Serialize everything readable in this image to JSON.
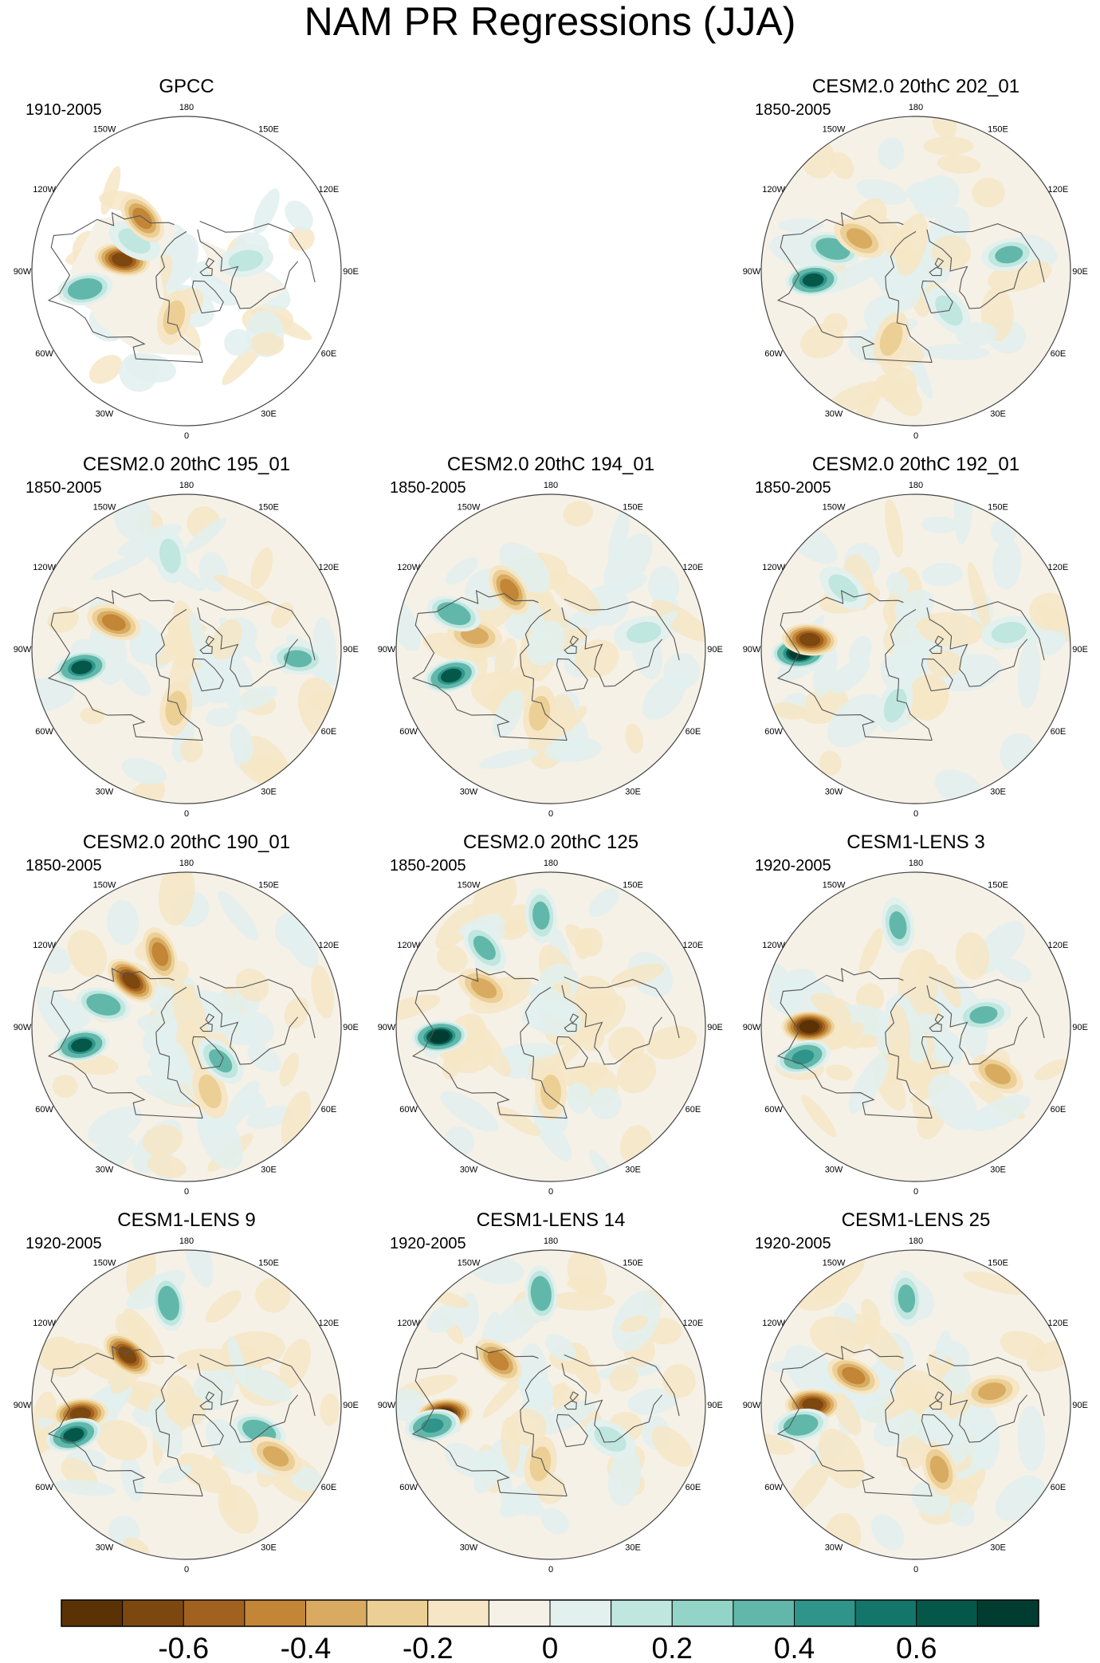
{
  "chart_data": {
    "type": "heatmap",
    "title": "NAM PR Regressions (JJA)",
    "projection": "north polar stereographic",
    "grid": false,
    "legend_placement": "bottom",
    "panels": [
      {
        "title": "GPCC",
        "period": "1910-2005",
        "row": 0,
        "col": 0,
        "masked_ocean": true,
        "features": [
          {
            "lon": 100,
            "lat": 52,
            "value": -0.6
          },
          {
            "lon": 80,
            "lat": 30,
            "value": 0.4
          },
          {
            "lon": -100,
            "lat": 55,
            "value": 0.2
          },
          {
            "lon": 15,
            "lat": 62,
            "value": -0.2
          },
          {
            "lon": 120,
            "lat": 55,
            "value": 0.2
          },
          {
            "lon": 140,
            "lat": 50,
            "value": -0.4
          }
        ]
      },
      {
        "title": "CESM2.0 20thC 202_01",
        "period": "1850-2005",
        "row": 0,
        "col": 2,
        "features": [
          {
            "lon": 85,
            "lat": 30,
            "value": 0.6
          },
          {
            "lon": 105,
            "lat": 40,
            "value": 0.4
          },
          {
            "lon": 120,
            "lat": 52,
            "value": -0.3
          },
          {
            "lon": -100,
            "lat": 35,
            "value": 0.3
          },
          {
            "lon": 20,
            "lat": 48,
            "value": -0.2
          },
          {
            "lon": -40,
            "lat": 60,
            "value": 0.2
          }
        ]
      },
      {
        "title": "CESM2.0 20thC 195_01",
        "period": "1850-2005",
        "row": 1,
        "col": 0,
        "features": [
          {
            "lon": 80,
            "lat": 28,
            "value": 0.6
          },
          {
            "lon": 110,
            "lat": 45,
            "value": -0.4
          },
          {
            "lon": 170,
            "lat": 35,
            "value": 0.2
          },
          {
            "lon": -85,
            "lat": 25,
            "value": 0.3
          },
          {
            "lon": 10,
            "lat": 55,
            "value": -0.2
          }
        ]
      },
      {
        "title": "CESM2.0 20thC 194_01",
        "period": "1850-2005",
        "row": 1,
        "col": 1,
        "features": [
          {
            "lon": 75,
            "lat": 30,
            "value": 0.6
          },
          {
            "lon": 145,
            "lat": 48,
            "value": -0.4
          },
          {
            "lon": 100,
            "lat": 45,
            "value": -0.3
          },
          {
            "lon": 110,
            "lat": 30,
            "value": 0.4
          },
          {
            "lon": -100,
            "lat": 35,
            "value": 0.2
          },
          {
            "lon": 10,
            "lat": 52,
            "value": -0.2
          }
        ]
      },
      {
        "title": "CESM2.0 20thC 192_01",
        "period": "1850-2005",
        "row": 1,
        "col": 2,
        "features": [
          {
            "lon": 88,
            "lat": 22,
            "value": 0.7
          },
          {
            "lon": 95,
            "lat": 28,
            "value": -0.6
          },
          {
            "lon": 130,
            "lat": 35,
            "value": 0.2
          },
          {
            "lon": -100,
            "lat": 35,
            "value": 0.2
          },
          {
            "lon": 20,
            "lat": 55,
            "value": 0.2
          }
        ]
      },
      {
        "title": "CESM2.0 20thC 190_01",
        "period": "1850-2005",
        "row": 2,
        "col": 0,
        "features": [
          {
            "lon": 80,
            "lat": 28,
            "value": 0.6
          },
          {
            "lon": 130,
            "lat": 48,
            "value": -0.6
          },
          {
            "lon": 160,
            "lat": 45,
            "value": -0.4
          },
          {
            "lon": 105,
            "lat": 40,
            "value": 0.4
          },
          {
            "lon": -20,
            "lat": 50,
            "value": -0.2
          },
          {
            "lon": -45,
            "lat": 62,
            "value": 0.3
          }
        ]
      },
      {
        "title": "CESM2.0 20thC 125",
        "period": "1850-2005",
        "row": 2,
        "col": 1,
        "features": [
          {
            "lon": 85,
            "lat": 25,
            "value": 0.7
          },
          {
            "lon": 175,
            "lat": 25,
            "value": 0.3
          },
          {
            "lon": 120,
            "lat": 45,
            "value": -0.3
          },
          {
            "lon": 140,
            "lat": 30,
            "value": 0.3
          },
          {
            "lon": 0,
            "lat": 52,
            "value": -0.2
          }
        ]
      },
      {
        "title": "CESM1-LENS 3",
        "period": "1920-2005",
        "row": 2,
        "col": 2,
        "features": [
          {
            "lon": 90,
            "lat": 28,
            "value": -0.7
          },
          {
            "lon": 75,
            "lat": 22,
            "value": 0.5
          },
          {
            "lon": 170,
            "lat": 30,
            "value": 0.3
          },
          {
            "lon": -60,
            "lat": 35,
            "value": -0.3
          },
          {
            "lon": -100,
            "lat": 50,
            "value": 0.3
          }
        ]
      },
      {
        "title": "CESM1-LENS 9",
        "period": "1920-2005",
        "row": 3,
        "col": 0,
        "features": [
          {
            "lon": 85,
            "lat": 28,
            "value": -0.6
          },
          {
            "lon": 75,
            "lat": 22,
            "value": 0.6
          },
          {
            "lon": 130,
            "lat": 45,
            "value": -0.6
          },
          {
            "lon": 170,
            "lat": 30,
            "value": 0.4
          },
          {
            "lon": -70,
            "lat": 45,
            "value": 0.4
          },
          {
            "lon": -60,
            "lat": 30,
            "value": -0.3
          }
        ]
      },
      {
        "title": "CESM1-LENS 14",
        "period": "1920-2005",
        "row": 3,
        "col": 1,
        "features": [
          {
            "lon": 85,
            "lat": 28,
            "value": -0.7
          },
          {
            "lon": 80,
            "lat": 20,
            "value": 0.5
          },
          {
            "lon": 175,
            "lat": 25,
            "value": 0.4
          },
          {
            "lon": 130,
            "lat": 50,
            "value": -0.4
          },
          {
            "lon": -60,
            "lat": 50,
            "value": 0.2
          },
          {
            "lon": 10,
            "lat": 55,
            "value": -0.2
          }
        ]
      },
      {
        "title": "CESM1-LENS 25",
        "period": "1920-2005",
        "row": 3,
        "col": 2,
        "features": [
          {
            "lon": 90,
            "lat": 30,
            "value": -0.6
          },
          {
            "lon": 80,
            "lat": 22,
            "value": 0.4
          },
          {
            "lon": 115,
            "lat": 50,
            "value": -0.4
          },
          {
            "lon": 175,
            "lat": 28,
            "value": 0.3
          },
          {
            "lon": -100,
            "lat": 45,
            "value": -0.3
          },
          {
            "lon": -20,
            "lat": 50,
            "value": -0.3
          }
        ]
      }
    ],
    "lon_labels": [
      "180",
      "150E",
      "120E",
      "90E",
      "60E",
      "30E",
      "0",
      "30W",
      "60W",
      "90W",
      "120W",
      "150W"
    ],
    "colorbar": {
      "levels": [
        -0.7,
        -0.6,
        -0.5,
        -0.4,
        -0.3,
        -0.2,
        -0.1,
        0,
        0.1,
        0.2,
        0.3,
        0.4,
        0.5,
        0.6,
        0.7
      ],
      "colors": [
        "#5a3205",
        "#7d4810",
        "#a2621f",
        "#c38536",
        "#d8ab61",
        "#ebcf95",
        "#f6e6c5",
        "#f5f1e6",
        "#e2f0ee",
        "#bfe6df",
        "#93d4c8",
        "#61b8aa",
        "#2f958a",
        "#14756b",
        "#055849",
        "#013c30"
      ],
      "tick_labels": [
        "-0.6",
        "-0.4",
        "-0.2",
        "0",
        "0.2",
        "0.4",
        "0.6"
      ],
      "tick_values": [
        -0.6,
        -0.4,
        -0.2,
        0,
        0.2,
        0.4,
        0.6
      ]
    }
  }
}
